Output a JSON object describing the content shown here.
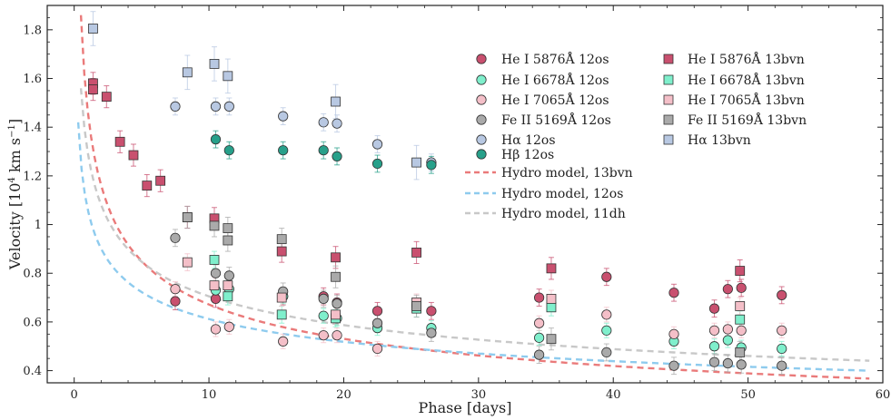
{
  "chart_data": {
    "type": "scatter",
    "xlabel": "Phase [days]",
    "ylabel_main": "Velocity [10",
    "ylabel_exp": "4",
    "ylabel_unit": " km s",
    "ylabel_unit_exp": "−1",
    "ylabel_close": "]",
    "xlim": [
      -2,
      60
    ],
    "ylim": [
      0.35,
      1.9
    ],
    "xticks": [
      0,
      10,
      20,
      30,
      40,
      50,
      60
    ],
    "yticks": [
      0.4,
      0.6,
      0.8,
      1.0,
      1.2,
      1.4,
      1.6,
      1.8
    ],
    "xtick_labels": [
      "0",
      "10",
      "20",
      "30",
      "40",
      "50",
      "60"
    ],
    "ytick_labels": [
      "0.4",
      "0.6",
      "0.8",
      "1",
      "1.2",
      "1.4",
      "1.6",
      "1.8"
    ],
    "legend_placement": "top-right",
    "series": [
      {
        "name": "He I 5876Å 12os",
        "marker": "circle",
        "color": "#c9506f",
        "err": 0.035,
        "x": [
          7.5,
          10.5,
          15.5,
          18.5,
          19.5,
          22.5,
          26.5,
          34.5,
          39.5,
          44.5,
          47.5,
          48.5,
          49.5,
          52.5
        ],
        "y": [
          0.685,
          0.695,
          0.705,
          0.705,
          0.68,
          0.645,
          0.645,
          0.7,
          0.785,
          0.72,
          0.655,
          0.735,
          0.74,
          0.71
        ]
      },
      {
        "name": "He I 6678Å 12os",
        "marker": "circle",
        "color": "#7fefcc",
        "err": 0.03,
        "x": [
          10.5,
          11.5,
          15.5,
          18.5,
          19.5,
          22.5,
          26.5,
          34.5,
          39.5,
          44.5,
          47.5,
          48.5,
          49.5,
          52.5
        ],
        "y": [
          0.73,
          0.735,
          0.705,
          0.625,
          0.615,
          0.575,
          0.575,
          0.535,
          0.565,
          0.52,
          0.5,
          0.525,
          0.495,
          0.49
        ]
      },
      {
        "name": "He I 7065Å 12os",
        "marker": "circle",
        "color": "#f4bfc8",
        "err": 0.03,
        "x": [
          7.5,
          10.5,
          11.5,
          15.5,
          18.5,
          19.5,
          22.5,
          34.5,
          39.5,
          44.5,
          47.5,
          48.5,
          49.5,
          52.5
        ],
        "y": [
          0.735,
          0.57,
          0.58,
          0.52,
          0.545,
          0.545,
          0.49,
          0.595,
          0.63,
          0.55,
          0.565,
          0.57,
          0.565,
          0.565
        ]
      },
      {
        "name": "Fe II 5169Å 12os",
        "marker": "circle",
        "color": "#aaaaaa",
        "err": 0.035,
        "x": [
          7.5,
          10.5,
          11.5,
          15.5,
          18.5,
          19.5,
          22.5,
          26.5,
          34.5,
          39.5,
          44.5,
          47.5,
          48.5,
          49.5,
          52.5
        ],
        "y": [
          0.945,
          0.8,
          0.79,
          0.725,
          0.695,
          0.675,
          0.595,
          0.555,
          0.465,
          0.475,
          0.42,
          0.435,
          0.43,
          0.425,
          0.42
        ]
      },
      {
        "name": "Hα 12os",
        "marker": "circle",
        "color": "#b8c8e2",
        "err": 0.035,
        "x": [
          7.5,
          10.5,
          11.5,
          15.5,
          18.5,
          19.5,
          22.5,
          26.5
        ],
        "y": [
          1.485,
          1.485,
          1.485,
          1.445,
          1.42,
          1.415,
          1.33,
          1.255
        ]
      },
      {
        "name": "Hβ 12os",
        "marker": "circle",
        "color": "#27a08a",
        "err": 0.035,
        "x": [
          10.5,
          11.5,
          15.5,
          18.5,
          19.5,
          22.5,
          26.5
        ],
        "y": [
          1.35,
          1.305,
          1.305,
          1.305,
          1.28,
          1.25,
          1.245
        ]
      },
      {
        "name": "He I 5876Å 13bvn",
        "marker": "square",
        "color": "#c9506f",
        "err": 0.045,
        "x": [
          1.4,
          1.4,
          2.4,
          3.4,
          4.4,
          5.4,
          6.4,
          8.4,
          10.4,
          15.4,
          19.4,
          25.4,
          35.4,
          49.4
        ],
        "y": [
          1.58,
          1.555,
          1.525,
          1.34,
          1.285,
          1.16,
          1.18,
          1.03,
          1.025,
          0.89,
          0.865,
          0.885,
          0.82,
          0.81
        ]
      },
      {
        "name": "He I 6678Å 13bvn",
        "marker": "square",
        "color": "#7fefcc",
        "err": 0.035,
        "x": [
          10.4,
          11.4,
          15.4,
          19.4,
          25.4,
          35.4,
          49.4
        ],
        "y": [
          0.855,
          0.705,
          0.63,
          0.615,
          0.655,
          0.66,
          0.61
        ]
      },
      {
        "name": "He I 7065Å 13bvn",
        "marker": "square",
        "color": "#f4bfc8",
        "err": 0.035,
        "x": [
          8.4,
          10.4,
          11.4,
          15.4,
          19.4,
          25.4,
          35.4,
          49.4
        ],
        "y": [
          0.845,
          0.75,
          0.75,
          0.7,
          0.63,
          0.68,
          0.695,
          0.665
        ]
      },
      {
        "name": "Fe II 5169Å 13bvn",
        "marker": "square",
        "color": "#aaaaaa",
        "err": 0.045,
        "x": [
          8.4,
          10.4,
          11.4,
          11.4,
          15.4,
          19.4,
          25.4,
          35.4,
          49.4
        ],
        "y": [
          1.03,
          0.995,
          0.985,
          0.935,
          0.94,
          0.785,
          0.665,
          0.53,
          0.475
        ]
      },
      {
        "name": "Hα 13bvn",
        "marker": "square",
        "color": "#b8c8e2",
        "err": 0.07,
        "x": [
          1.4,
          8.4,
          10.4,
          11.4,
          19.4,
          25.4
        ],
        "y": [
          1.805,
          1.625,
          1.66,
          1.61,
          1.505,
          1.255
        ]
      },
      {
        "name": "Hydro model, 13bvn",
        "marker": "dashed-line",
        "color": "#ea7a7a",
        "curve": {
          "a": 1.86,
          "b": 0.34,
          "x0": 0.5
        }
      },
      {
        "name": "Hydro model, 12os",
        "marker": "dashed-line",
        "color": "#8ecbee",
        "curve": {
          "a": 1.42,
          "b": 0.24,
          "x0": 0.3
        }
      },
      {
        "name": "Hydro model, 11dh",
        "marker": "dashed-line",
        "color": "#c8c8c8",
        "curve": {
          "a": 1.56,
          "b": 0.265,
          "x0": 0.5
        }
      }
    ]
  }
}
